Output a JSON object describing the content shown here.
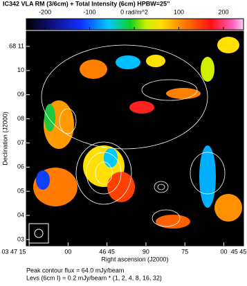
{
  "chart_data": {
    "type": "heatmap",
    "title": "IC342   VLA   RM (3/6cm) + Total Intensity (6cm)  HPBW=25''",
    "x_label": "Right ascension (J2000)",
    "y_label": "Declination (J2000)",
    "clim": [
      -242,
      245
    ],
    "cticks": [
      -200,
      -100,
      {
        "value": 0,
        "label": "0 rad/m^2"
      },
      100,
      200
    ],
    "xlim": [
      136.1,
      52.4
    ],
    "xticks": [
      {
        "value": 135,
        "label": "03 47 15"
      },
      {
        "value": 120,
        "label": "00"
      },
      {
        "value": 105,
        "label": "46 45"
      },
      90,
      75,
      {
        "value": 60,
        "label": "00"
      },
      {
        "value": 45,
        "label": "45 45"
      }
    ],
    "ylim": [
      2.74,
      11.63
    ],
    "yticks": [
      {
        "value": 11,
        "label": "68 11"
      },
      10,
      {
        "value": 9,
        "label": "09"
      },
      {
        "value": 8,
        "label": "08"
      },
      {
        "value": 7,
        "label": "07"
      },
      {
        "value": 6,
        "label": "06"
      },
      {
        "value": 5,
        "label": "05"
      },
      {
        "value": 4,
        "label": "04"
      },
      {
        "value": 3,
        "label": "03"
      }
    ],
    "notes": [
      "Peak contour flux =  64.0 mJy/beam",
      "Levs (6cm I) = 0.2 mJy/beam * (1, 2, 4, 8, 16, 32)"
    ]
  }
}
